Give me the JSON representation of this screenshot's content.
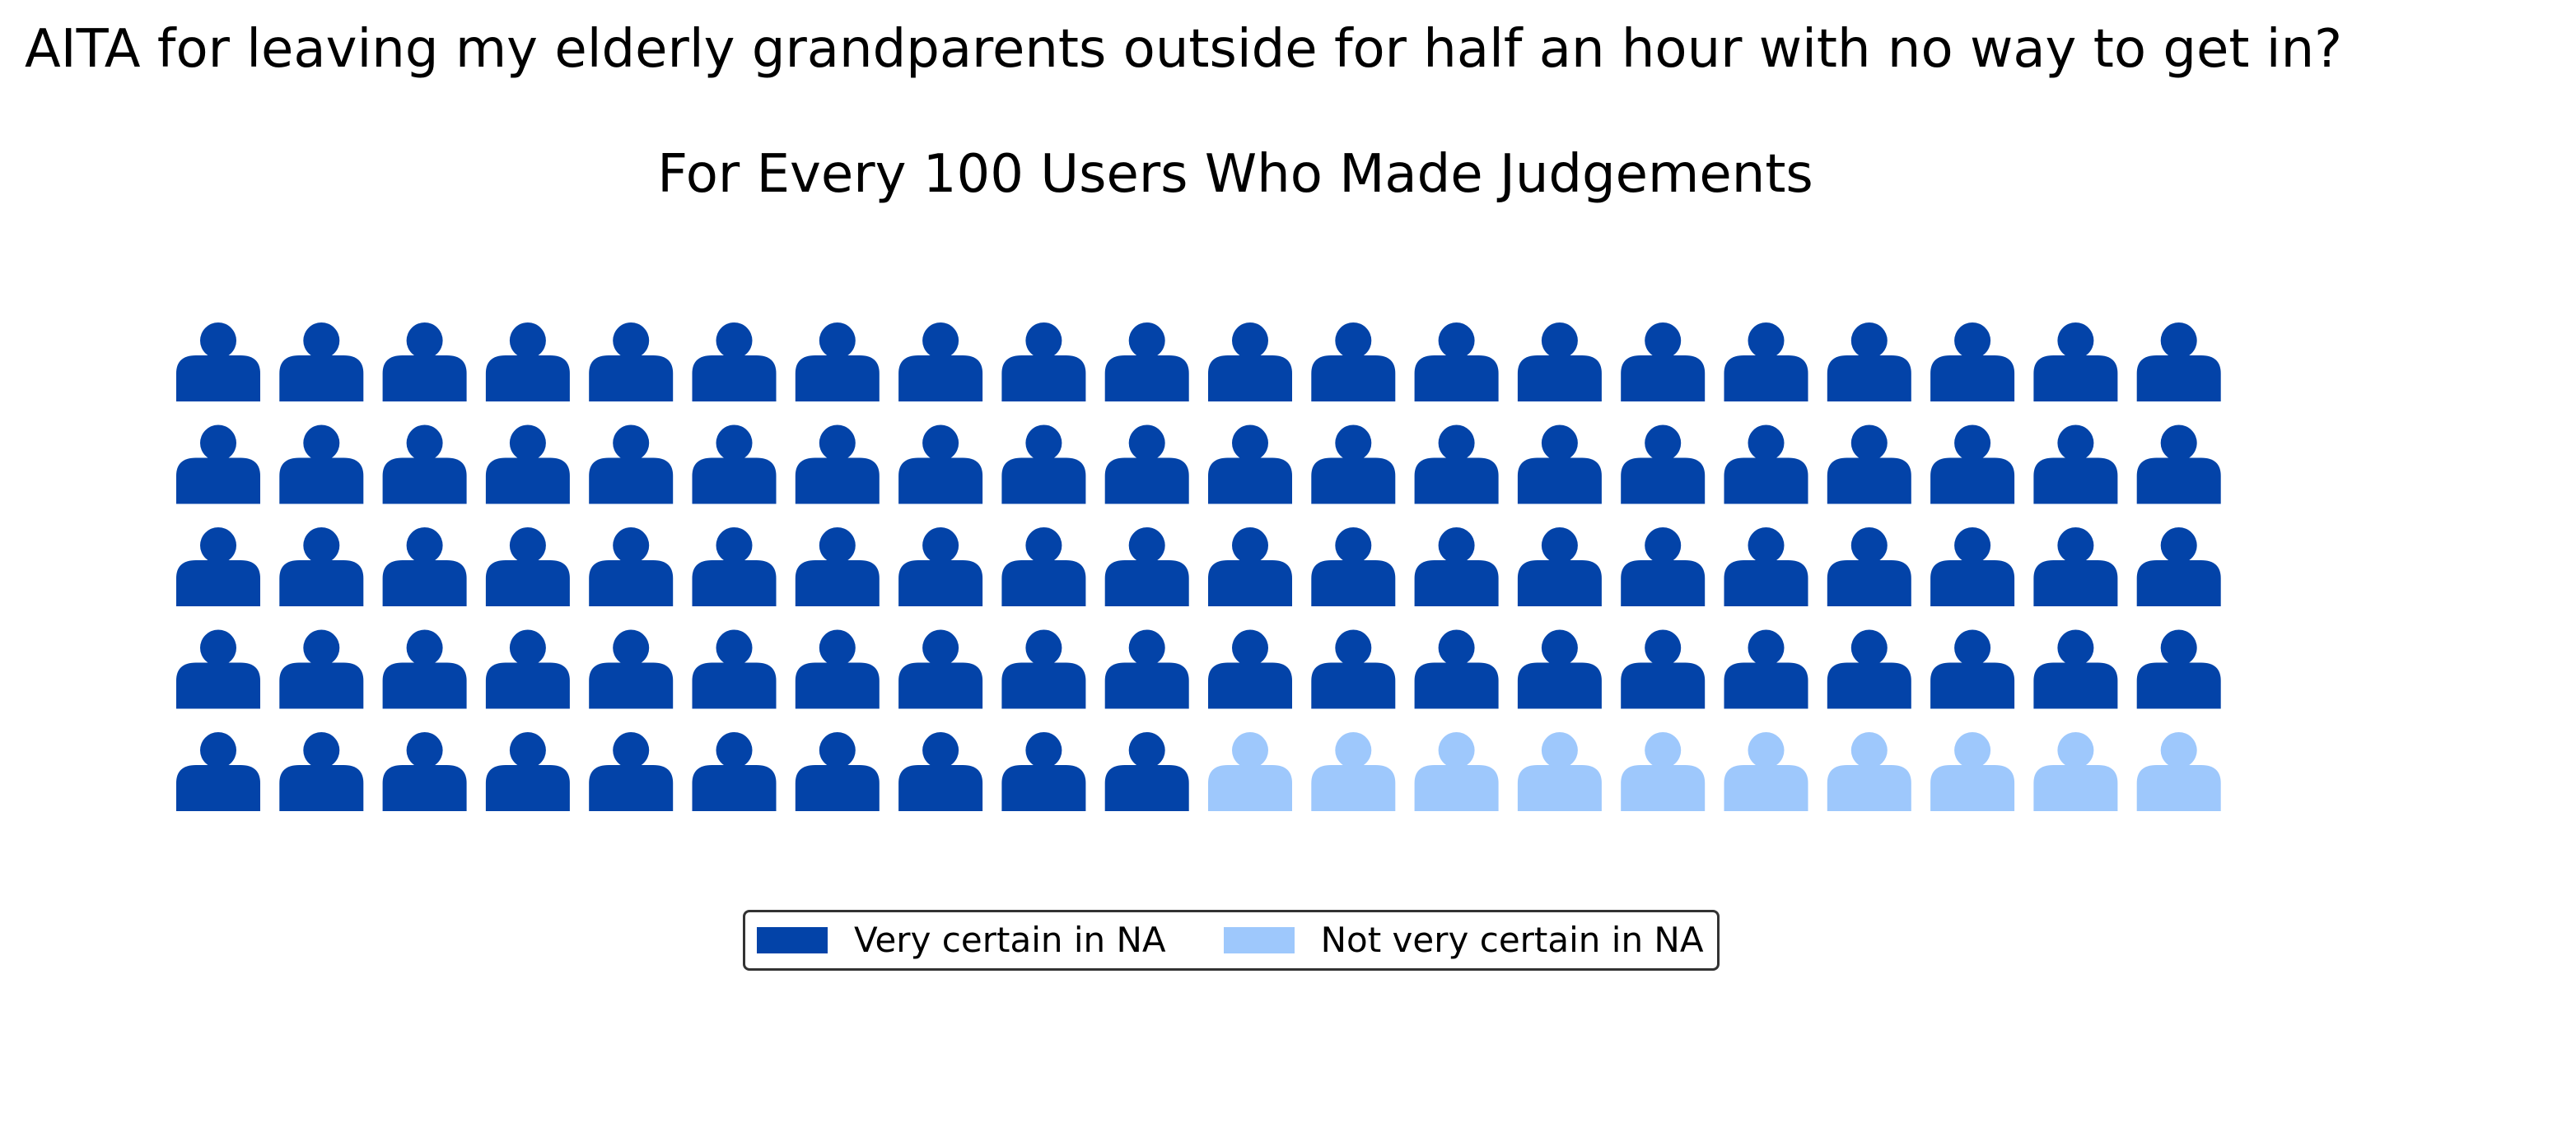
{
  "chart_data": {
    "type": "waffle",
    "title": "AITA for leaving my elderly grandparents outside for half an hour with no way to get in?",
    "subtitle": "For Every 100 Users Who Made Judgements",
    "icon": "person-icon",
    "rows": 5,
    "columns": 20,
    "series": [
      {
        "name": "Very certain in NA",
        "value": 90,
        "color": "#0343a8"
      },
      {
        "name": "Not very certain in NA",
        "value": 10,
        "color": "#9ec8fc"
      }
    ],
    "legend_position": "bottom-center"
  }
}
